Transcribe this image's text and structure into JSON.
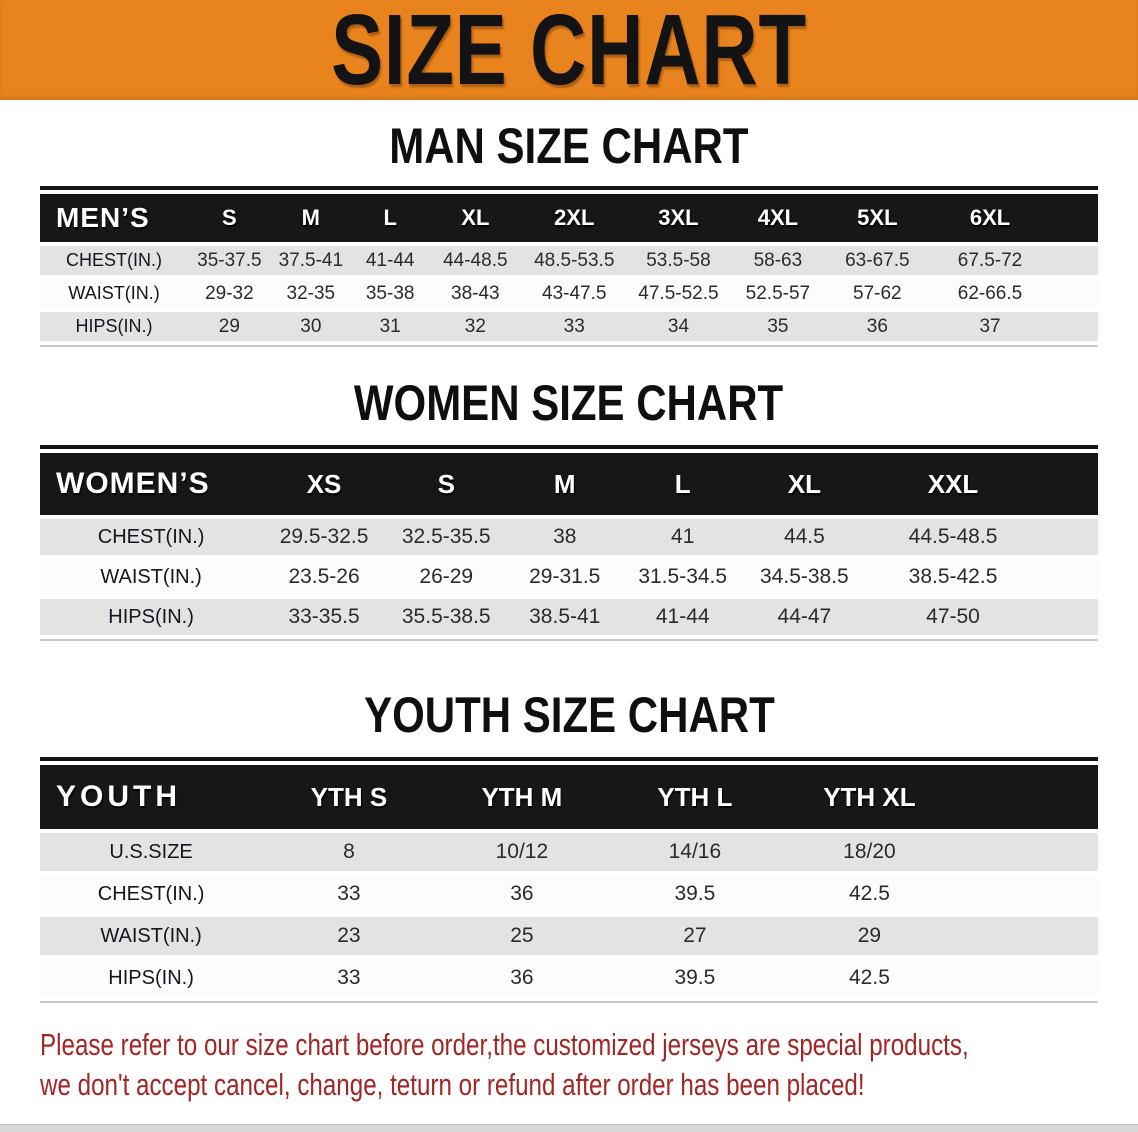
{
  "banner": {
    "title": "SIZE CHART"
  },
  "colors": {
    "banner_orange": "#e8831d",
    "band_black": "#171717",
    "row_gray": "#e3e3e4",
    "footer_red": "#a32626"
  },
  "sections": {
    "men": {
      "heading": "MAN SIZE CHART",
      "header_label": "MEN’S",
      "sizes": [
        "S",
        "M",
        "L",
        "XL",
        "2XL",
        "3XL",
        "4XL",
        "5XL",
        "6XL"
      ],
      "rows": [
        {
          "label": "CHEST(IN.)",
          "values": [
            "35-37.5",
            "37.5-41",
            "41-44",
            "44-48.5",
            "48.5-53.5",
            "53.5-58",
            "58-63",
            "63-67.5",
            "67.5-72"
          ]
        },
        {
          "label": "WAIST(IN.)",
          "values": [
            "29-32",
            "32-35",
            "35-38",
            "38-43",
            "43-47.5",
            "47.5-52.5",
            "52.5-57",
            "57-62",
            "62-66.5"
          ]
        },
        {
          "label": "HIPS(IN.)",
          "values": [
            "29",
            "30",
            "31",
            "32",
            "33",
            "34",
            "35",
            "36",
            "37"
          ]
        }
      ]
    },
    "women": {
      "heading": "WOMEN SIZE CHART",
      "header_label": "WOMEN’S",
      "sizes": [
        "XS",
        "S",
        "M",
        "L",
        "XL",
        "XXL"
      ],
      "rows": [
        {
          "label": "CHEST(IN.)",
          "values": [
            "29.5-32.5",
            "32.5-35.5",
            "38",
            "41",
            "44.5",
            "44.5-48.5"
          ]
        },
        {
          "label": "WAIST(IN.)",
          "values": [
            "23.5-26",
            "26-29",
            "29-31.5",
            "31.5-34.5",
            "34.5-38.5",
            "38.5-42.5"
          ]
        },
        {
          "label": "HIPS(IN.)",
          "values": [
            "33-35.5",
            "35.5-38.5",
            "38.5-41",
            "41-44",
            "44-47",
            "47-50"
          ]
        }
      ]
    },
    "youth": {
      "heading": "YOUTH SIZE CHART",
      "header_label": "YOUTH",
      "sizes": [
        "YTH S",
        "YTH M",
        "YTH L",
        "YTH XL"
      ],
      "rows": [
        {
          "label": "U.S.SIZE",
          "values": [
            "8",
            "10/12",
            "14/16",
            "18/20"
          ]
        },
        {
          "label": "CHEST(IN.)",
          "values": [
            "33",
            "36",
            "39.5",
            "42.5"
          ]
        },
        {
          "label": "WAIST(IN.)",
          "values": [
            "23",
            "25",
            "27",
            "29"
          ]
        },
        {
          "label": "HIPS(IN.)",
          "values": [
            "33",
            "36",
            "39.5",
            "42.5"
          ]
        }
      ]
    }
  },
  "footer": {
    "line1": "Please refer to our size chart before order,the customized jerseys are special products,",
    "line2": "we don't accept cancel, change, teturn or refund after order has been placed!"
  }
}
